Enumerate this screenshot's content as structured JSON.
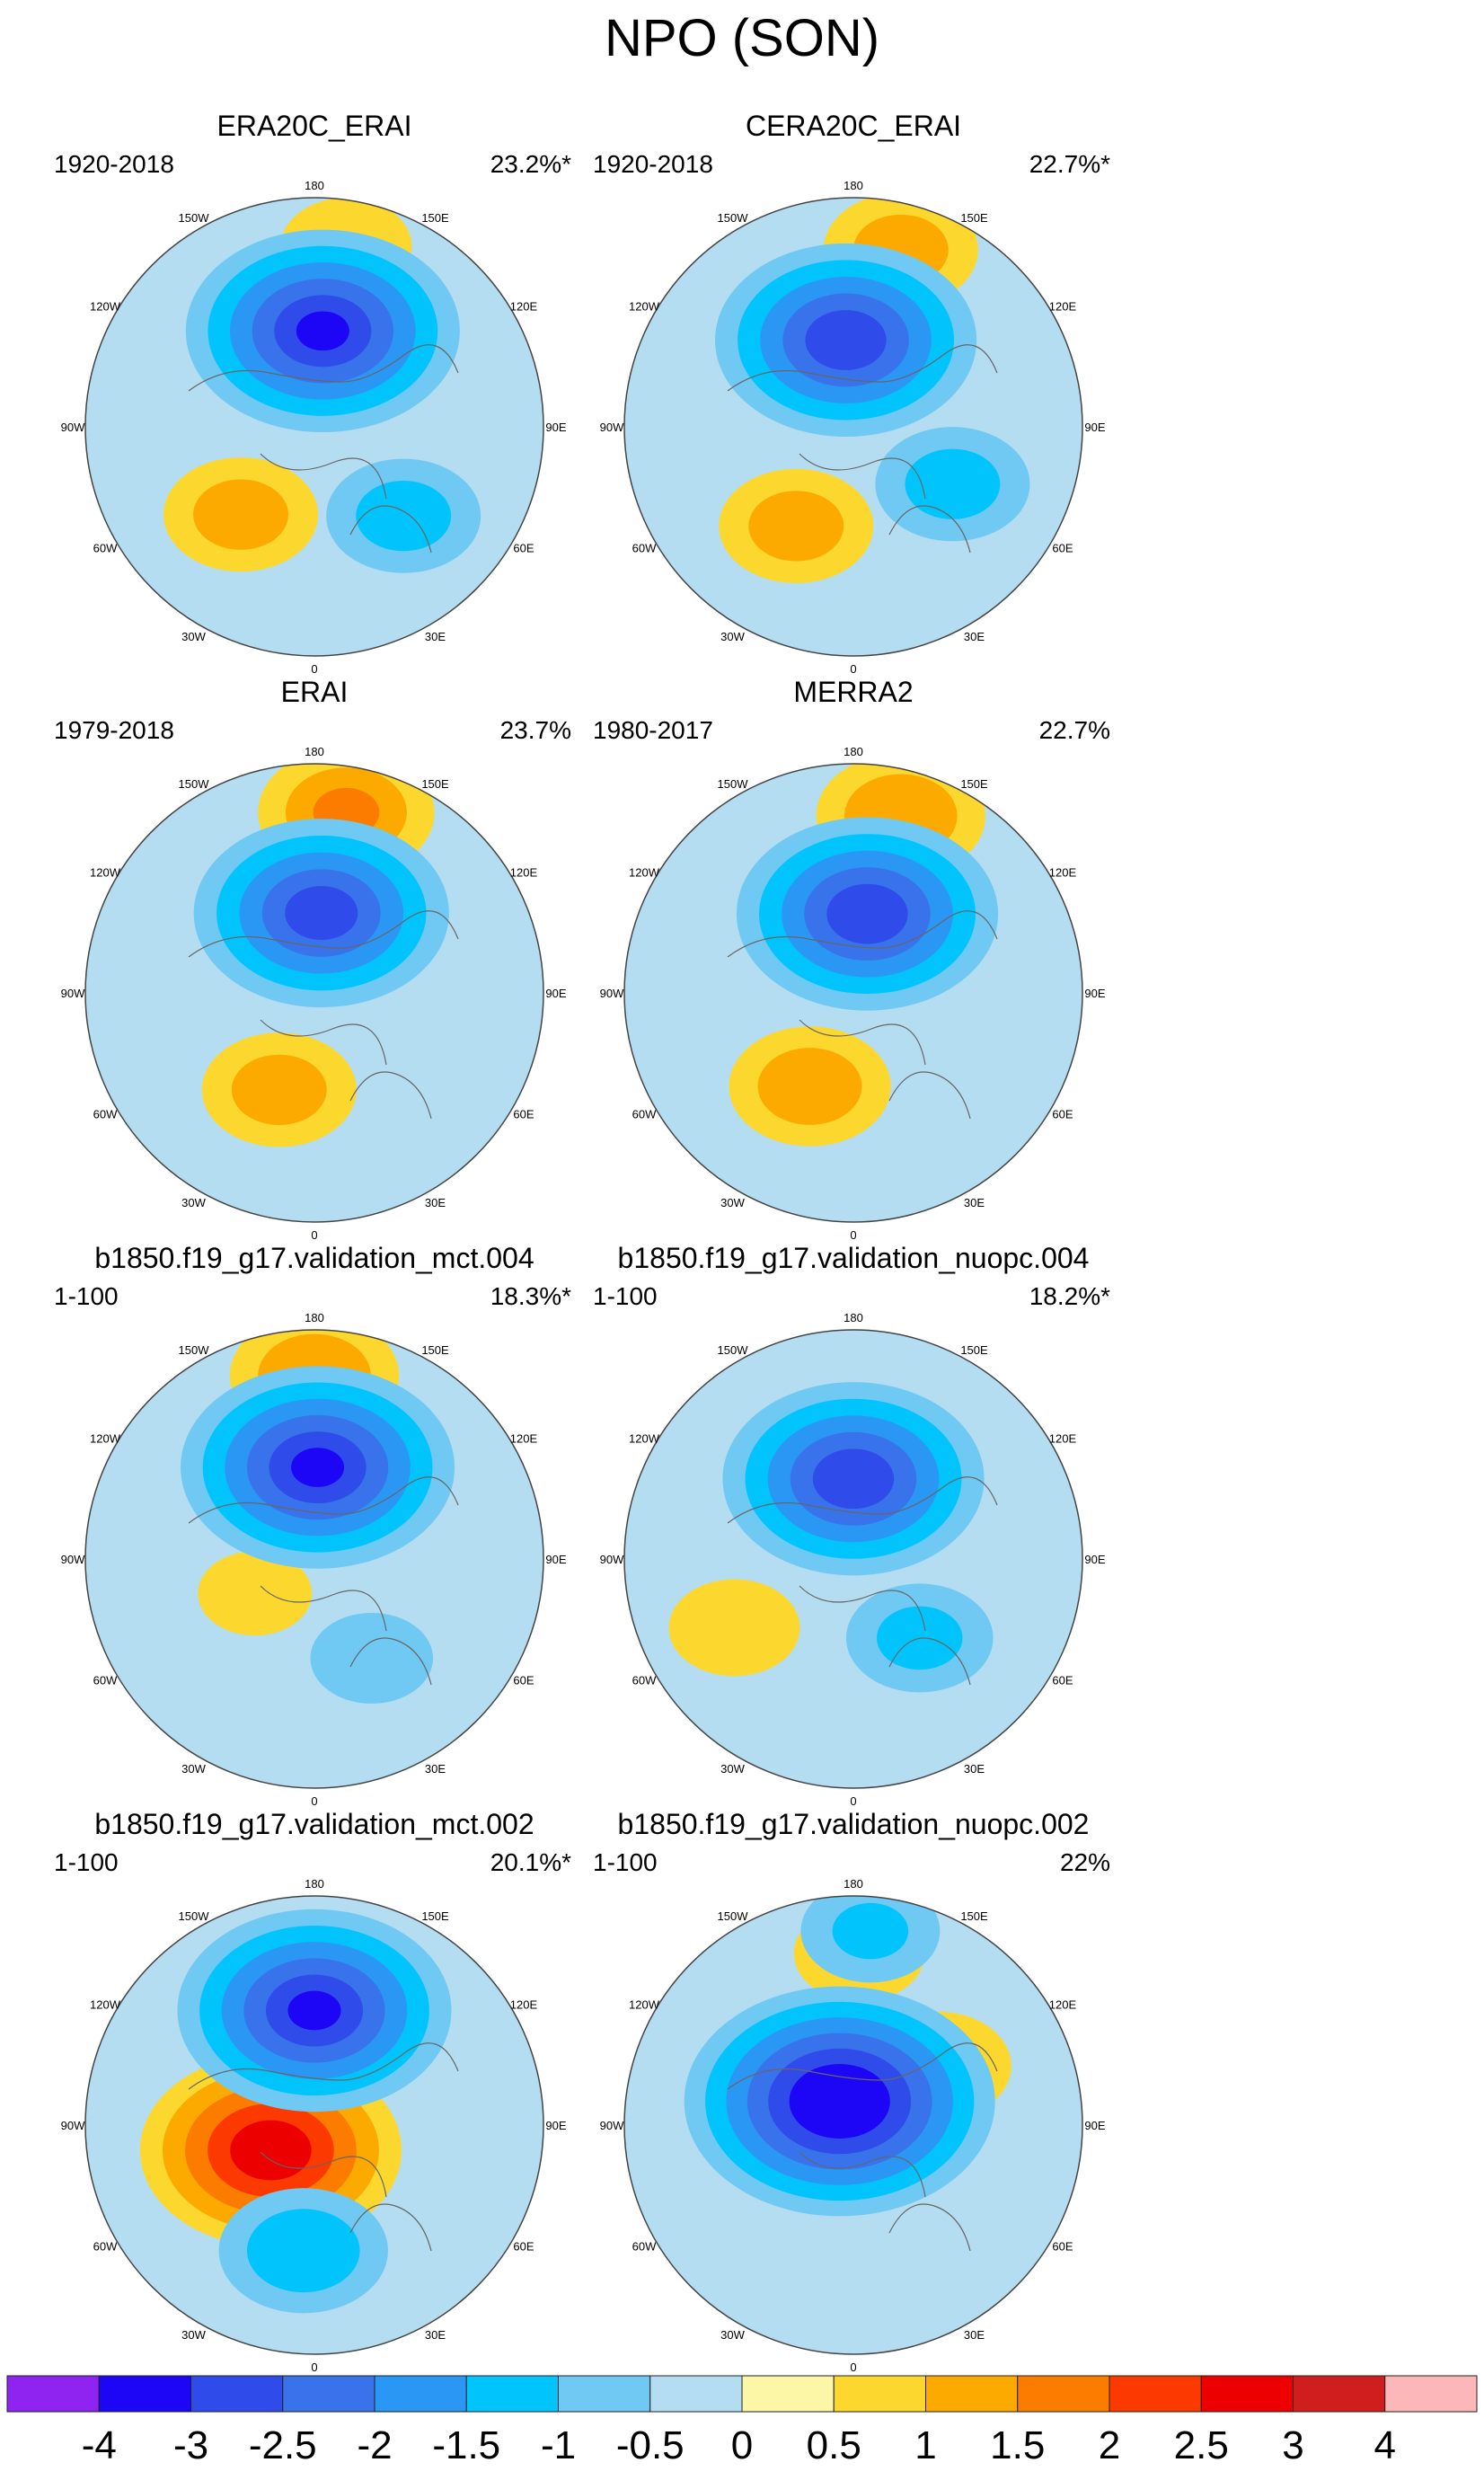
{
  "title": "NPO (SON)",
  "lon_labels": [
    "180",
    "150E",
    "120E",
    "90E",
    "60E",
    "30E",
    "0",
    "30W",
    "60W",
    "90W",
    "120W",
    "150W"
  ],
  "panels": [
    {
      "id": "era20c",
      "title": "ERA20C_ERAI",
      "period": "1920-2018",
      "variance": "23.2%*",
      "lows": [
        {
          "lon": 175,
          "r": 0.42,
          "strength": 3.0
        },
        {
          "lon": 45,
          "r": 0.55,
          "strength": 1.2
        }
      ],
      "highs": [
        {
          "lon": 170,
          "r": 0.8,
          "strength": 0.9
        },
        {
          "lon": 320,
          "r": 0.5,
          "strength": 1.2
        }
      ]
    },
    {
      "id": "cera20c",
      "title": "CERA20C_ERAI",
      "period": "1920-2018",
      "variance": "22.7%*",
      "lows": [
        {
          "lon": 185,
          "r": 0.38,
          "strength": 2.8
        },
        {
          "lon": 60,
          "r": 0.5,
          "strength": 1.2
        }
      ],
      "highs": [
        {
          "lon": 165,
          "r": 0.8,
          "strength": 1.2
        },
        {
          "lon": 330,
          "r": 0.5,
          "strength": 1.2
        }
      ]
    },
    {
      "id": "erai",
      "title": "ERAI",
      "period": "1979-2018",
      "variance": "23.7%",
      "lows": [
        {
          "lon": 175,
          "r": 0.35,
          "strength": 2.7
        }
      ],
      "highs": [
        {
          "lon": 170,
          "r": 0.8,
          "strength": 1.5
        },
        {
          "lon": 340,
          "r": 0.45,
          "strength": 1.2
        }
      ]
    },
    {
      "id": "merra2",
      "title": "MERRA2",
      "period": "1980-2017",
      "variance": "22.7%",
      "lows": [
        {
          "lon": 170,
          "r": 0.35,
          "strength": 2.8
        }
      ],
      "highs": [
        {
          "lon": 165,
          "r": 0.8,
          "strength": 1.4
        },
        {
          "lon": 335,
          "r": 0.45,
          "strength": 1.3
        }
      ]
    },
    {
      "id": "mct004",
      "title": "b1850.f19_g17.validation_mct.004",
      "period": "1-100",
      "variance": "18.3%*",
      "lows": [
        {
          "lon": 178,
          "r": 0.4,
          "strength": 3.0
        },
        {
          "lon": 30,
          "r": 0.5,
          "strength": 0.8
        }
      ],
      "highs": [
        {
          "lon": 180,
          "r": 0.8,
          "strength": 1.4
        },
        {
          "lon": 300,
          "r": 0.3,
          "strength": 0.7
        }
      ]
    },
    {
      "id": "nuopc004",
      "title": "b1850.f19_g17.validation_nuopc.004",
      "period": "1-100",
      "variance": "18.2%*",
      "lows": [
        {
          "lon": 180,
          "r": 0.35,
          "strength": 2.8
        },
        {
          "lon": 40,
          "r": 0.45,
          "strength": 1.1
        }
      ],
      "highs": [
        {
          "lon": 300,
          "r": 0.6,
          "strength": 0.9
        }
      ]
    },
    {
      "id": "mct002",
      "title": "b1850.f19_g17.validation_mct.002",
      "period": "1-100",
      "variance": "20.1%*",
      "lows": [
        {
          "lon": 180,
          "r": 0.5,
          "strength": 3.0
        },
        {
          "lon": 355,
          "r": 0.55,
          "strength": 1.4
        }
      ],
      "highs": [
        {
          "lon": 300,
          "r": 0.22,
          "strength": 2.8
        }
      ]
    },
    {
      "id": "nuopc002",
      "title": "b1850.f19_g17.validation_nuopc.002",
      "period": "1-100",
      "variance": "22%",
      "lows": [
        {
          "lon": 210,
          "r": 0.12,
          "strength": 3.6
        },
        {
          "lon": 175,
          "r": 0.85,
          "strength": 1.0
        }
      ],
      "highs": [
        {
          "lon": 178,
          "r": 0.75,
          "strength": 0.9
        },
        {
          "lon": 125,
          "r": 0.45,
          "strength": 1.1
        }
      ]
    }
  ],
  "colorbar": {
    "colors": [
      "#8f23f0",
      "#1d05f5",
      "#2f4ceb",
      "#3973eb",
      "#2b97f5",
      "#02c4fc",
      "#70c9f2",
      "#b4ddf2",
      "#fcf7a6",
      "#fcd82f",
      "#fcaa00",
      "#fc7c00",
      "#fc3a00",
      "#ec0000",
      "#d01e1e",
      "#fcb8b8"
    ],
    "labels": [
      "-4",
      "-3",
      "-2.5",
      "-2",
      "-1.5",
      "-1",
      "-0.5",
      "0",
      "0.5",
      "1",
      "1.5",
      "2",
      "2.5",
      "3",
      "4"
    ],
    "levels": [
      -4,
      -3,
      -2.5,
      -2,
      -1.5,
      -1,
      -0.5,
      0,
      0.5,
      1,
      1.5,
      2,
      2.5,
      3,
      4
    ]
  },
  "chart_data": {
    "type": "heatmap",
    "title": "NPO (SON)",
    "projection": "north polar stereographic",
    "colorbar_levels": [
      -4,
      -3,
      -2.5,
      -2,
      -1.5,
      -1,
      -0.5,
      0,
      0.5,
      1,
      1.5,
      2,
      2.5,
      3,
      4
    ],
    "panels": [
      {
        "title": "ERA20C_ERAI",
        "period": "1920-2018",
        "variance_explained": "23.2%*"
      },
      {
        "title": "CERA20C_ERAI",
        "period": "1920-2018",
        "variance_explained": "22.7%*"
      },
      {
        "title": "ERAI",
        "period": "1979-2018",
        "variance_explained": "23.7%"
      },
      {
        "title": "MERRA2",
        "period": "1980-2017",
        "variance_explained": "22.7%"
      },
      {
        "title": "b1850.f19_g17.validation_mct.004",
        "period": "1-100",
        "variance_explained": "18.3%*"
      },
      {
        "title": "b1850.f19_g17.validation_nuopc.004",
        "period": "1-100",
        "variance_explained": "18.2%*"
      },
      {
        "title": "b1850.f19_g17.validation_mct.002",
        "period": "1-100",
        "variance_explained": "20.1%*"
      },
      {
        "title": "b1850.f19_g17.validation_nuopc.002",
        "period": "1-100",
        "variance_explained": "22%"
      }
    ]
  }
}
